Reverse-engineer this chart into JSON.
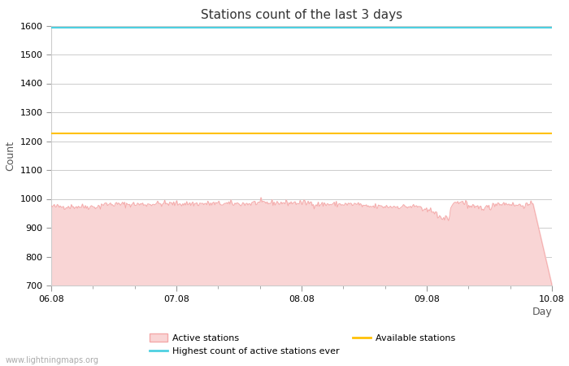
{
  "title": "Stations count of the last 3 days",
  "xlabel": "Day",
  "ylabel": "Count",
  "ylim": [
    700,
    1600
  ],
  "yticks": [
    700,
    800,
    900,
    1000,
    1100,
    1200,
    1300,
    1400,
    1500,
    1600
  ],
  "x_start": 0,
  "x_end": 96,
  "x_tick_positions": [
    0,
    24,
    48,
    72,
    96
  ],
  "x_tick_labels": [
    "06.08",
    "07.08",
    "08.08",
    "09.08",
    "10.08"
  ],
  "highest_count": 1592,
  "available_stations": 1228,
  "active_line_color": "#f4a8a8",
  "active_fill_color": "#f9d5d5",
  "highest_line_color": "#4dd0e1",
  "available_line_color": "#ffc107",
  "watermark": "www.lightningmaps.org",
  "background_color": "#ffffff",
  "grid_color": "#cccccc",
  "title_fontsize": 11,
  "axis_label_fontsize": 9,
  "tick_fontsize": 8,
  "legend_fontsize": 8
}
